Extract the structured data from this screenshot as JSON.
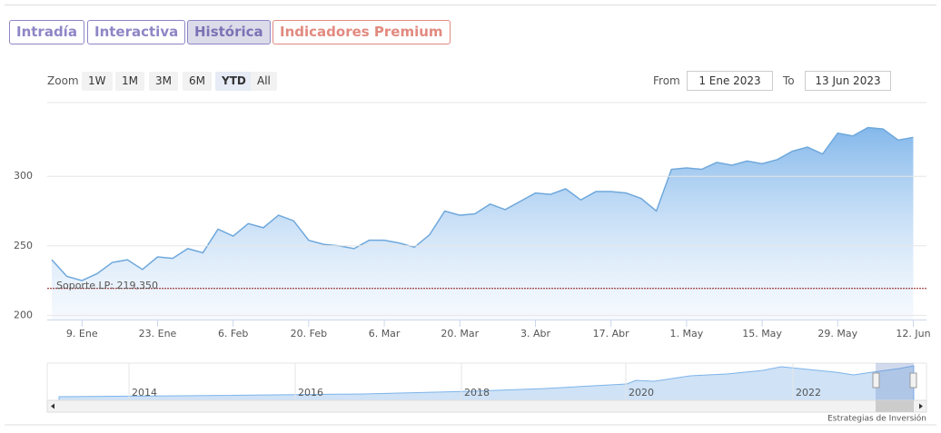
{
  "tabs": [
    "Intradía",
    "Interactiva",
    "Histórica",
    "Indicadores Premium"
  ],
  "range_selector": {
    "label": "Zoom",
    "buttons": [
      "1W",
      "1M",
      "3M",
      "6M",
      "YTD",
      "All"
    ],
    "from_label": "From",
    "from": "1 Ene 2023",
    "to_label": "To",
    "to": "13 Jun 2023"
  },
  "chart_data": {
    "type": "area",
    "categories": [
      null,
      null,
      "9. Ene",
      null,
      null,
      null,
      null,
      "23. Ene",
      null,
      null,
      null,
      null,
      "6. Feb",
      null,
      null,
      null,
      null,
      "20. Feb",
      null,
      null,
      null,
      null,
      "6. Mar",
      null,
      null,
      null,
      null,
      "20. Mar",
      null,
      null,
      null,
      null,
      "3. Abr",
      null,
      null,
      null,
      null,
      "17. Abr",
      null,
      null,
      null,
      null,
      "1. May",
      null,
      null,
      null,
      null,
      "15. May",
      null,
      null,
      null,
      null,
      "29. May",
      null,
      null,
      null,
      null,
      "12. Jun"
    ],
    "values": [
      240,
      228,
      225,
      230,
      238,
      240,
      233,
      242,
      241,
      248,
      245,
      262,
      257,
      266,
      263,
      272,
      268,
      254,
      251,
      250,
      248,
      254,
      254,
      252,
      249,
      258,
      275,
      272,
      273,
      280,
      276,
      282,
      288,
      287,
      291,
      283,
      289,
      289,
      288,
      284,
      275,
      305,
      306,
      305,
      310,
      308,
      311,
      309,
      312,
      318,
      321,
      316,
      331,
      329,
      335,
      334,
      326,
      328
    ],
    "color": "#6fa8dc",
    "ylim": [
      197,
      353
    ],
    "yticks": [
      200,
      250,
      300
    ],
    "grid": true,
    "plot_lines": [
      {
        "value": 219.35,
        "label": "Soporte LP: 219,350",
        "color": "#8b1a1a"
      }
    ]
  },
  "navigator": {
    "labels": [
      "2014",
      "2016",
      "2018",
      "2020",
      "2022"
    ]
  },
  "credits": "Estrategias de Inversión"
}
